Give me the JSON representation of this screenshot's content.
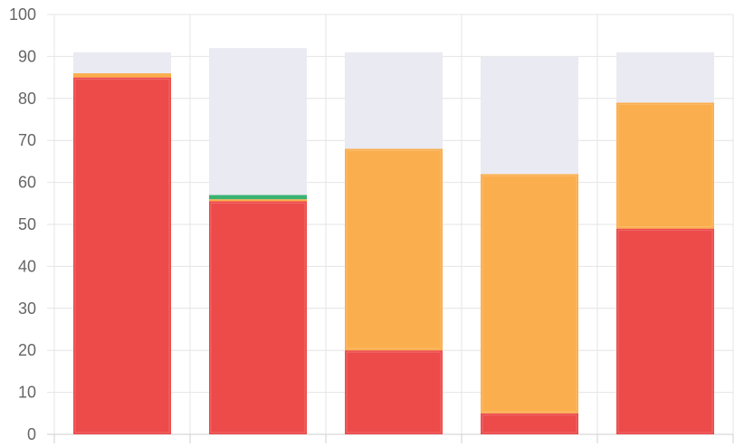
{
  "chart_data": {
    "type": "bar",
    "stacked": true,
    "title": "",
    "xlabel": "",
    "ylabel": "",
    "categories": [
      "",
      "",
      "",
      "",
      ""
    ],
    "ylim": [
      0,
      100
    ],
    "y_ticks": [
      "0",
      "10",
      "20",
      "30",
      "40",
      "50",
      "60",
      "70",
      "80",
      "90",
      "100"
    ],
    "grid": true,
    "legend": "none",
    "series": [
      {
        "color": "#ed4a4a",
        "values": [
          85,
          55.5,
          20,
          5,
          49
        ]
      },
      {
        "color": "#fbae4d",
        "values": [
          1,
          0.5,
          48,
          57,
          30
        ]
      },
      {
        "color": "#3bb273",
        "values": [
          0,
          1,
          0,
          0,
          0
        ]
      },
      {
        "color": "#eaeaf2",
        "values": [
          5,
          35,
          23,
          28,
          12
        ]
      }
    ]
  }
}
